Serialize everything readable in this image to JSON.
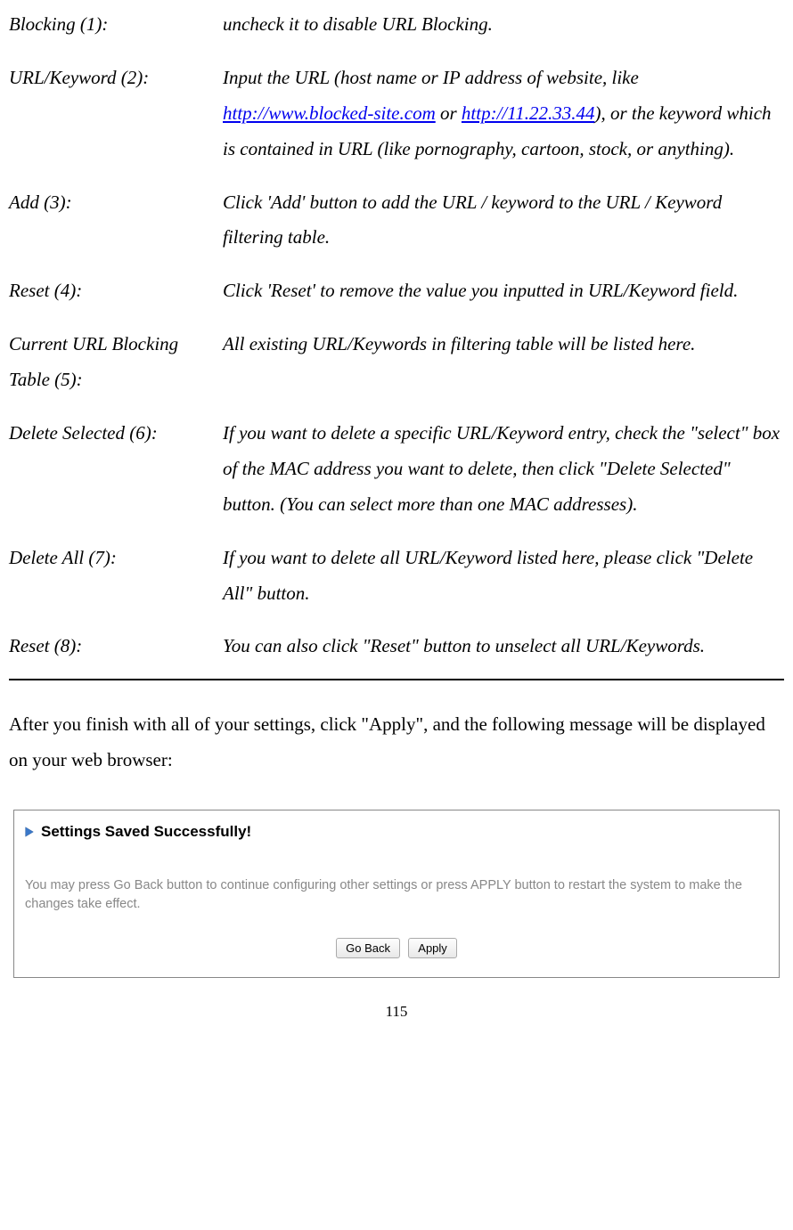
{
  "entries": [
    {
      "term": "Blocking (1):",
      "desc_html": "uncheck it to disable URL Blocking."
    },
    {
      "term": "URL/Keyword (2):",
      "desc_html": "Input the URL (host name or IP address of website, like <a href=\"#\" data-name=\"blocked-site-link\" data-interactable=\"true\">http://www.blocked-site.com</a> or <a href=\"#\" data-name=\"ip-link\" data-interactable=\"true\">http://11.22.33.44</a>), or the keyword which is contained in URL (like pornography, cartoon, stock, or anything)."
    },
    {
      "term": "Add (3):",
      "desc_html": "Click 'Add' button to add the URL / keyword to the URL / Keyword filtering table."
    },
    {
      "term": "Reset (4):",
      "desc_html": "Click 'Reset' to remove the value you inputted in URL/Keyword field."
    },
    {
      "term": "Current URL Blocking Table (5):",
      "desc_html": "All existing URL/Keywords in filtering table will be listed here."
    },
    {
      "term": "Delete Selected (6):",
      "desc_html": "If you want to delete a specific URL/Keyword entry, check the \"select\" box of the MAC address you want to delete, then click \"Delete Selected\" button. (You can select more than one MAC addresses)."
    },
    {
      "term": "Delete All (7):",
      "desc_html": "If you want to delete all URL/Keyword listed here, please click \"Delete All\" button."
    },
    {
      "term": "Reset (8):",
      "desc_html": "You can also click \"Reset\" button to unselect all URL/Keywords."
    }
  ],
  "after_text": "After you finish with all of your settings, click \"Apply\", and the following message will be displayed on your web browser:",
  "message": {
    "title": "Settings Saved Successfully!",
    "body": "You may press Go Back button to continue configuring other settings or press APPLY button to restart the system to make the changes take effect.",
    "buttons": {
      "go_back": "Go Back",
      "apply": "Apply"
    }
  },
  "page_number": "115"
}
